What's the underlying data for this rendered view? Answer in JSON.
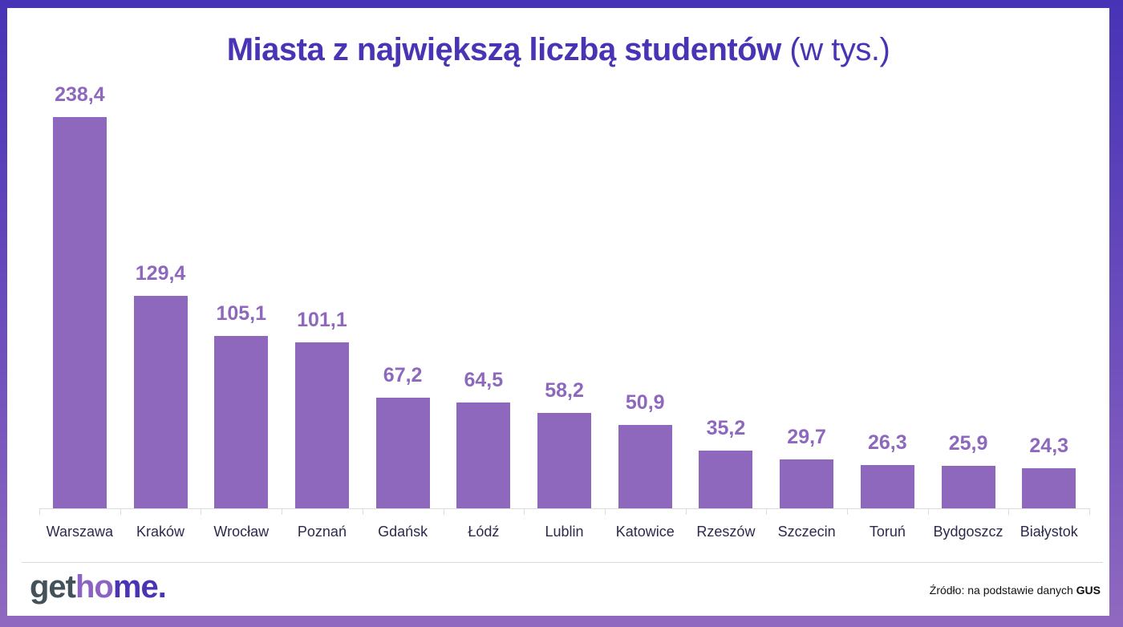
{
  "title": {
    "bold": "Miasta z największą liczbą studentów",
    "light": "(w tys.)"
  },
  "colors": {
    "bar": "#8e68bd",
    "title": "#4a33b4",
    "frame_top": "#4733b6",
    "frame_bottom": "#9069bf"
  },
  "logo": {
    "part1": "get",
    "part2": "ho",
    "part3": "me."
  },
  "source": {
    "prefix": "Źródło: na podstawie danych",
    "org": "GUS"
  },
  "chart_data": {
    "type": "bar",
    "title": "Miasta z największą liczbą studentów (w tys.)",
    "xlabel": "",
    "ylabel": "",
    "grid": false,
    "categories": [
      "Warszawa",
      "Kraków",
      "Wrocław",
      "Poznań",
      "Gdańsk",
      "Łódź",
      "Lublin",
      "Katowice",
      "Rzeszów",
      "Szczecin",
      "Toruń",
      "Bydgoszcz",
      "Białystok"
    ],
    "values": [
      238.4,
      129.4,
      105.1,
      101.1,
      67.2,
      64.5,
      58.2,
      50.9,
      35.2,
      29.7,
      26.3,
      25.9,
      24.3
    ],
    "labels": [
      "238,4",
      "129,4",
      "105,1",
      "101,1",
      "67,2",
      "64,5",
      "58,2",
      "50,9",
      "35,2",
      "29,7",
      "26,3",
      "25,9",
      "24,3"
    ],
    "ylim": [
      0,
      240
    ]
  }
}
